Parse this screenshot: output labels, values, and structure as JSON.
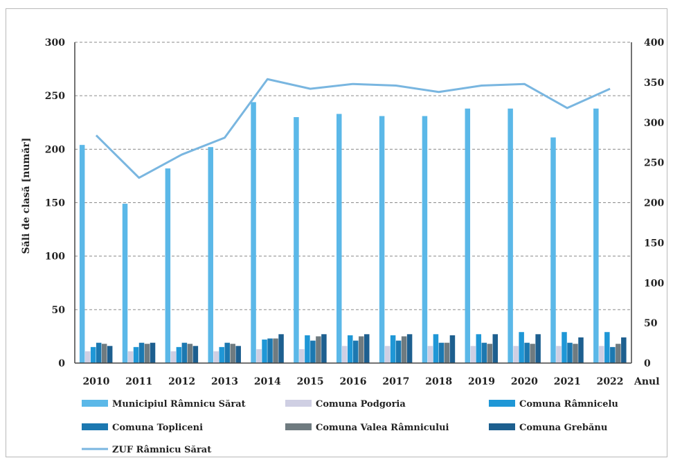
{
  "chart_data": {
    "type": "bar",
    "ylabel": "Săli de clasă [număr]",
    "xlabel": "Anul",
    "categories": [
      "2010",
      "2011",
      "2012",
      "2013",
      "2014",
      "2015",
      "2016",
      "2017",
      "2018",
      "2019",
      "2020",
      "2021",
      "2022"
    ],
    "ylim": [
      0,
      300
    ],
    "y_ticks": [
      0,
      50,
      100,
      150,
      200,
      250,
      300
    ],
    "y2lim": [
      0,
      400
    ],
    "y2_ticks": [
      0,
      50,
      100,
      150,
      200,
      250,
      300,
      350,
      400
    ],
    "grid": true,
    "legend_position": "bottom",
    "series": [
      {
        "name": "Municipiul Râmnicu Sărat",
        "kind": "bar",
        "axis": "left",
        "color": "#5bb8e8",
        "values": [
          204,
          149,
          182,
          202,
          244,
          230,
          233,
          231,
          231,
          238,
          238,
          211,
          238
        ]
      },
      {
        "name": "Comuna Podgoria",
        "kind": "bar",
        "axis": "left",
        "color": "#cfcfe3",
        "values": [
          11,
          11,
          11,
          11,
          13,
          13,
          16,
          16,
          16,
          16,
          16,
          16,
          16
        ]
      },
      {
        "name": "Comuna Râmnicelu",
        "kind": "bar",
        "axis": "left",
        "color": "#1f97d6",
        "values": [
          15,
          15,
          15,
          15,
          22,
          26,
          26,
          26,
          27,
          27,
          29,
          29,
          29
        ]
      },
      {
        "name": "Comuna Topliceni",
        "kind": "bar",
        "axis": "left",
        "color": "#1c78b0",
        "values": [
          19,
          19,
          19,
          19,
          23,
          21,
          21,
          21,
          19,
          19,
          19,
          19,
          15
        ]
      },
      {
        "name": "Comuna Valea Râmnicului",
        "kind": "bar",
        "axis": "left",
        "color": "#6f7b80",
        "values": [
          18,
          18,
          18,
          18,
          23,
          25,
          25,
          25,
          19,
          18,
          18,
          18,
          18
        ]
      },
      {
        "name": "Comuna Grebănu",
        "kind": "bar",
        "axis": "left",
        "color": "#1d5f8f",
        "values": [
          16,
          19,
          16,
          16,
          27,
          27,
          27,
          27,
          26,
          27,
          27,
          24,
          24
        ]
      },
      {
        "name": "ZUF Râmnicu Sărat",
        "kind": "line",
        "axis": "right",
        "color": "#79b6e0",
        "values": [
          284,
          231,
          260,
          281,
          354,
          342,
          348,
          346,
          338,
          346,
          348,
          318,
          342
        ]
      }
    ]
  }
}
